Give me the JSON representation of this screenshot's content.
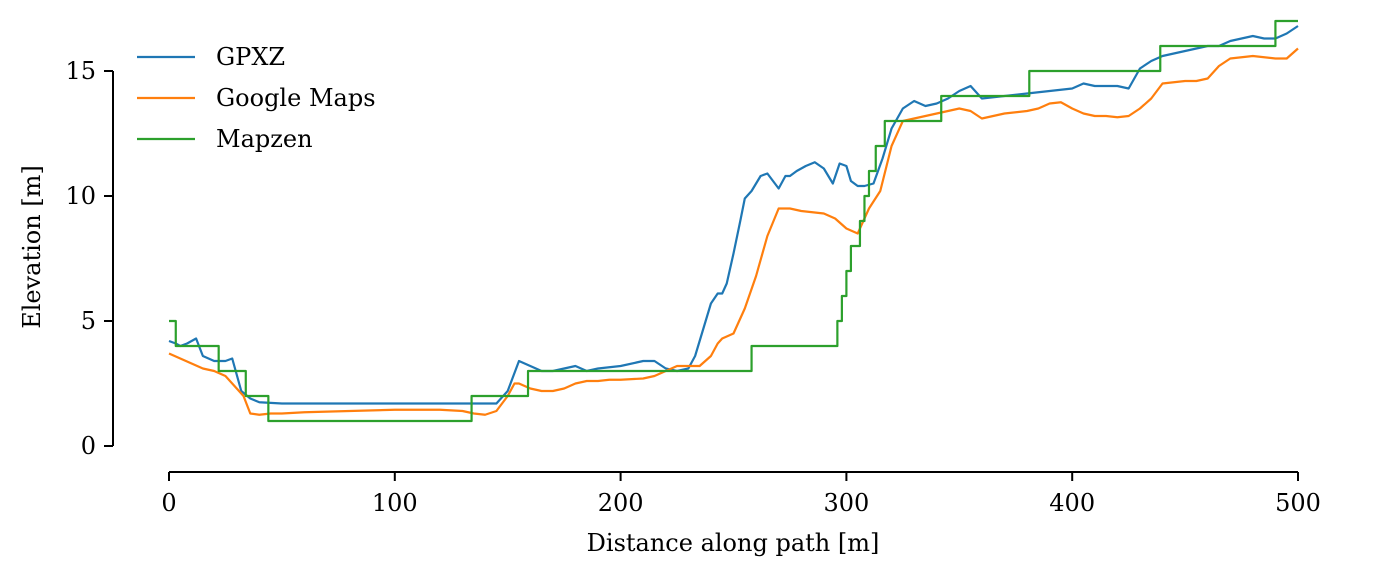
{
  "chart_data": {
    "type": "line",
    "xlabel": "Distance along path [m]",
    "ylabel": "Elevation [m]",
    "xlim": [
      0,
      500
    ],
    "ylim": [
      -1,
      17
    ],
    "x_ticks": [
      0,
      100,
      200,
      300,
      400,
      500
    ],
    "y_ticks": [
      0,
      5,
      10,
      15
    ],
    "grid": false,
    "legend_position": "top-left",
    "series": [
      {
        "name": "GPXZ",
        "color": "#1f77b4",
        "step": false,
        "x": [
          0,
          3,
          5,
          8,
          12,
          15,
          20,
          25,
          28,
          32,
          36,
          40,
          50,
          100,
          140,
          145,
          150,
          155,
          160,
          165,
          170,
          175,
          180,
          185,
          190,
          200,
          210,
          215,
          220,
          225,
          230,
          233,
          236,
          240,
          243,
          245,
          247,
          250,
          253,
          255,
          258,
          262,
          265,
          270,
          273,
          275,
          278,
          282,
          286,
          290,
          294,
          297,
          300,
          302,
          305,
          308,
          312,
          316,
          320,
          325,
          330,
          335,
          340,
          345,
          350,
          355,
          360,
          370,
          380,
          390,
          400,
          405,
          410,
          420,
          425,
          430,
          435,
          440,
          450,
          460,
          465,
          470,
          475,
          480,
          485,
          490,
          495,
          500
        ],
        "values": [
          4.2,
          4.1,
          4.0,
          4.1,
          4.3,
          3.6,
          3.4,
          3.4,
          3.5,
          2.2,
          1.9,
          1.75,
          1.7,
          1.7,
          1.7,
          1.7,
          2.2,
          3.4,
          3.2,
          3.0,
          3.0,
          3.1,
          3.2,
          3.0,
          3.1,
          3.2,
          3.4,
          3.4,
          3.1,
          3.0,
          3.1,
          3.6,
          4.5,
          5.7,
          6.1,
          6.1,
          6.5,
          7.7,
          9.0,
          9.9,
          10.2,
          10.8,
          10.9,
          10.3,
          10.8,
          10.8,
          11.0,
          11.2,
          11.35,
          11.1,
          10.5,
          11.3,
          11.2,
          10.6,
          10.4,
          10.4,
          10.5,
          11.5,
          12.7,
          13.5,
          13.8,
          13.6,
          13.7,
          13.9,
          14.2,
          14.4,
          13.9,
          14.0,
          14.1,
          14.2,
          14.3,
          14.5,
          14.4,
          14.4,
          14.3,
          15.1,
          15.4,
          15.6,
          15.8,
          16.0,
          16.0,
          16.2,
          16.3,
          16.4,
          16.3,
          16.3,
          16.5,
          16.8
        ]
      },
      {
        "name": "Google Maps",
        "color": "#ff7f0e",
        "step": false,
        "x": [
          0,
          5,
          10,
          15,
          20,
          25,
          30,
          33,
          36,
          40,
          45,
          50,
          60,
          80,
          100,
          120,
          130,
          135,
          140,
          145,
          150,
          153,
          155,
          160,
          165,
          170,
          175,
          180,
          185,
          190,
          195,
          200,
          210,
          215,
          220,
          225,
          230,
          235,
          240,
          243,
          245,
          250,
          255,
          260,
          265,
          270,
          275,
          280,
          290,
          295,
          300,
          305,
          310,
          315,
          320,
          325,
          330,
          340,
          350,
          355,
          360,
          365,
          370,
          380,
          385,
          390,
          395,
          400,
          405,
          410,
          415,
          420,
          425,
          430,
          435,
          440,
          450,
          455,
          460,
          465,
          470,
          480,
          490,
          495,
          500
        ],
        "values": [
          3.7,
          3.5,
          3.3,
          3.1,
          3.0,
          2.8,
          2.3,
          2.0,
          1.3,
          1.25,
          1.3,
          1.3,
          1.35,
          1.4,
          1.45,
          1.45,
          1.4,
          1.3,
          1.25,
          1.4,
          2.0,
          2.5,
          2.5,
          2.3,
          2.2,
          2.2,
          2.3,
          2.5,
          2.6,
          2.6,
          2.65,
          2.65,
          2.7,
          2.8,
          3.0,
          3.2,
          3.2,
          3.2,
          3.6,
          4.1,
          4.3,
          4.5,
          5.5,
          6.8,
          8.4,
          9.5,
          9.5,
          9.4,
          9.3,
          9.1,
          8.7,
          8.5,
          9.5,
          10.2,
          12.0,
          13.0,
          13.1,
          13.3,
          13.5,
          13.4,
          13.1,
          13.2,
          13.3,
          13.4,
          13.5,
          13.7,
          13.75,
          13.5,
          13.3,
          13.2,
          13.2,
          13.15,
          13.2,
          13.5,
          13.9,
          14.5,
          14.6,
          14.6,
          14.7,
          15.2,
          15.5,
          15.6,
          15.5,
          15.5,
          15.9
        ]
      },
      {
        "name": "Mapzen",
        "color": "#2ca02c",
        "step": true,
        "x": [
          0,
          3,
          22,
          34,
          44,
          134,
          159,
          258,
          296,
          298,
          300,
          302,
          306,
          308,
          310,
          313,
          317,
          320,
          322,
          342,
          381,
          439,
          490,
          500
        ],
        "values": [
          5,
          4,
          3,
          2,
          1,
          2,
          3,
          4,
          5,
          6,
          7,
          8,
          9,
          10,
          11,
          12,
          13,
          13,
          13,
          14,
          15,
          16,
          17,
          17
        ]
      }
    ]
  }
}
